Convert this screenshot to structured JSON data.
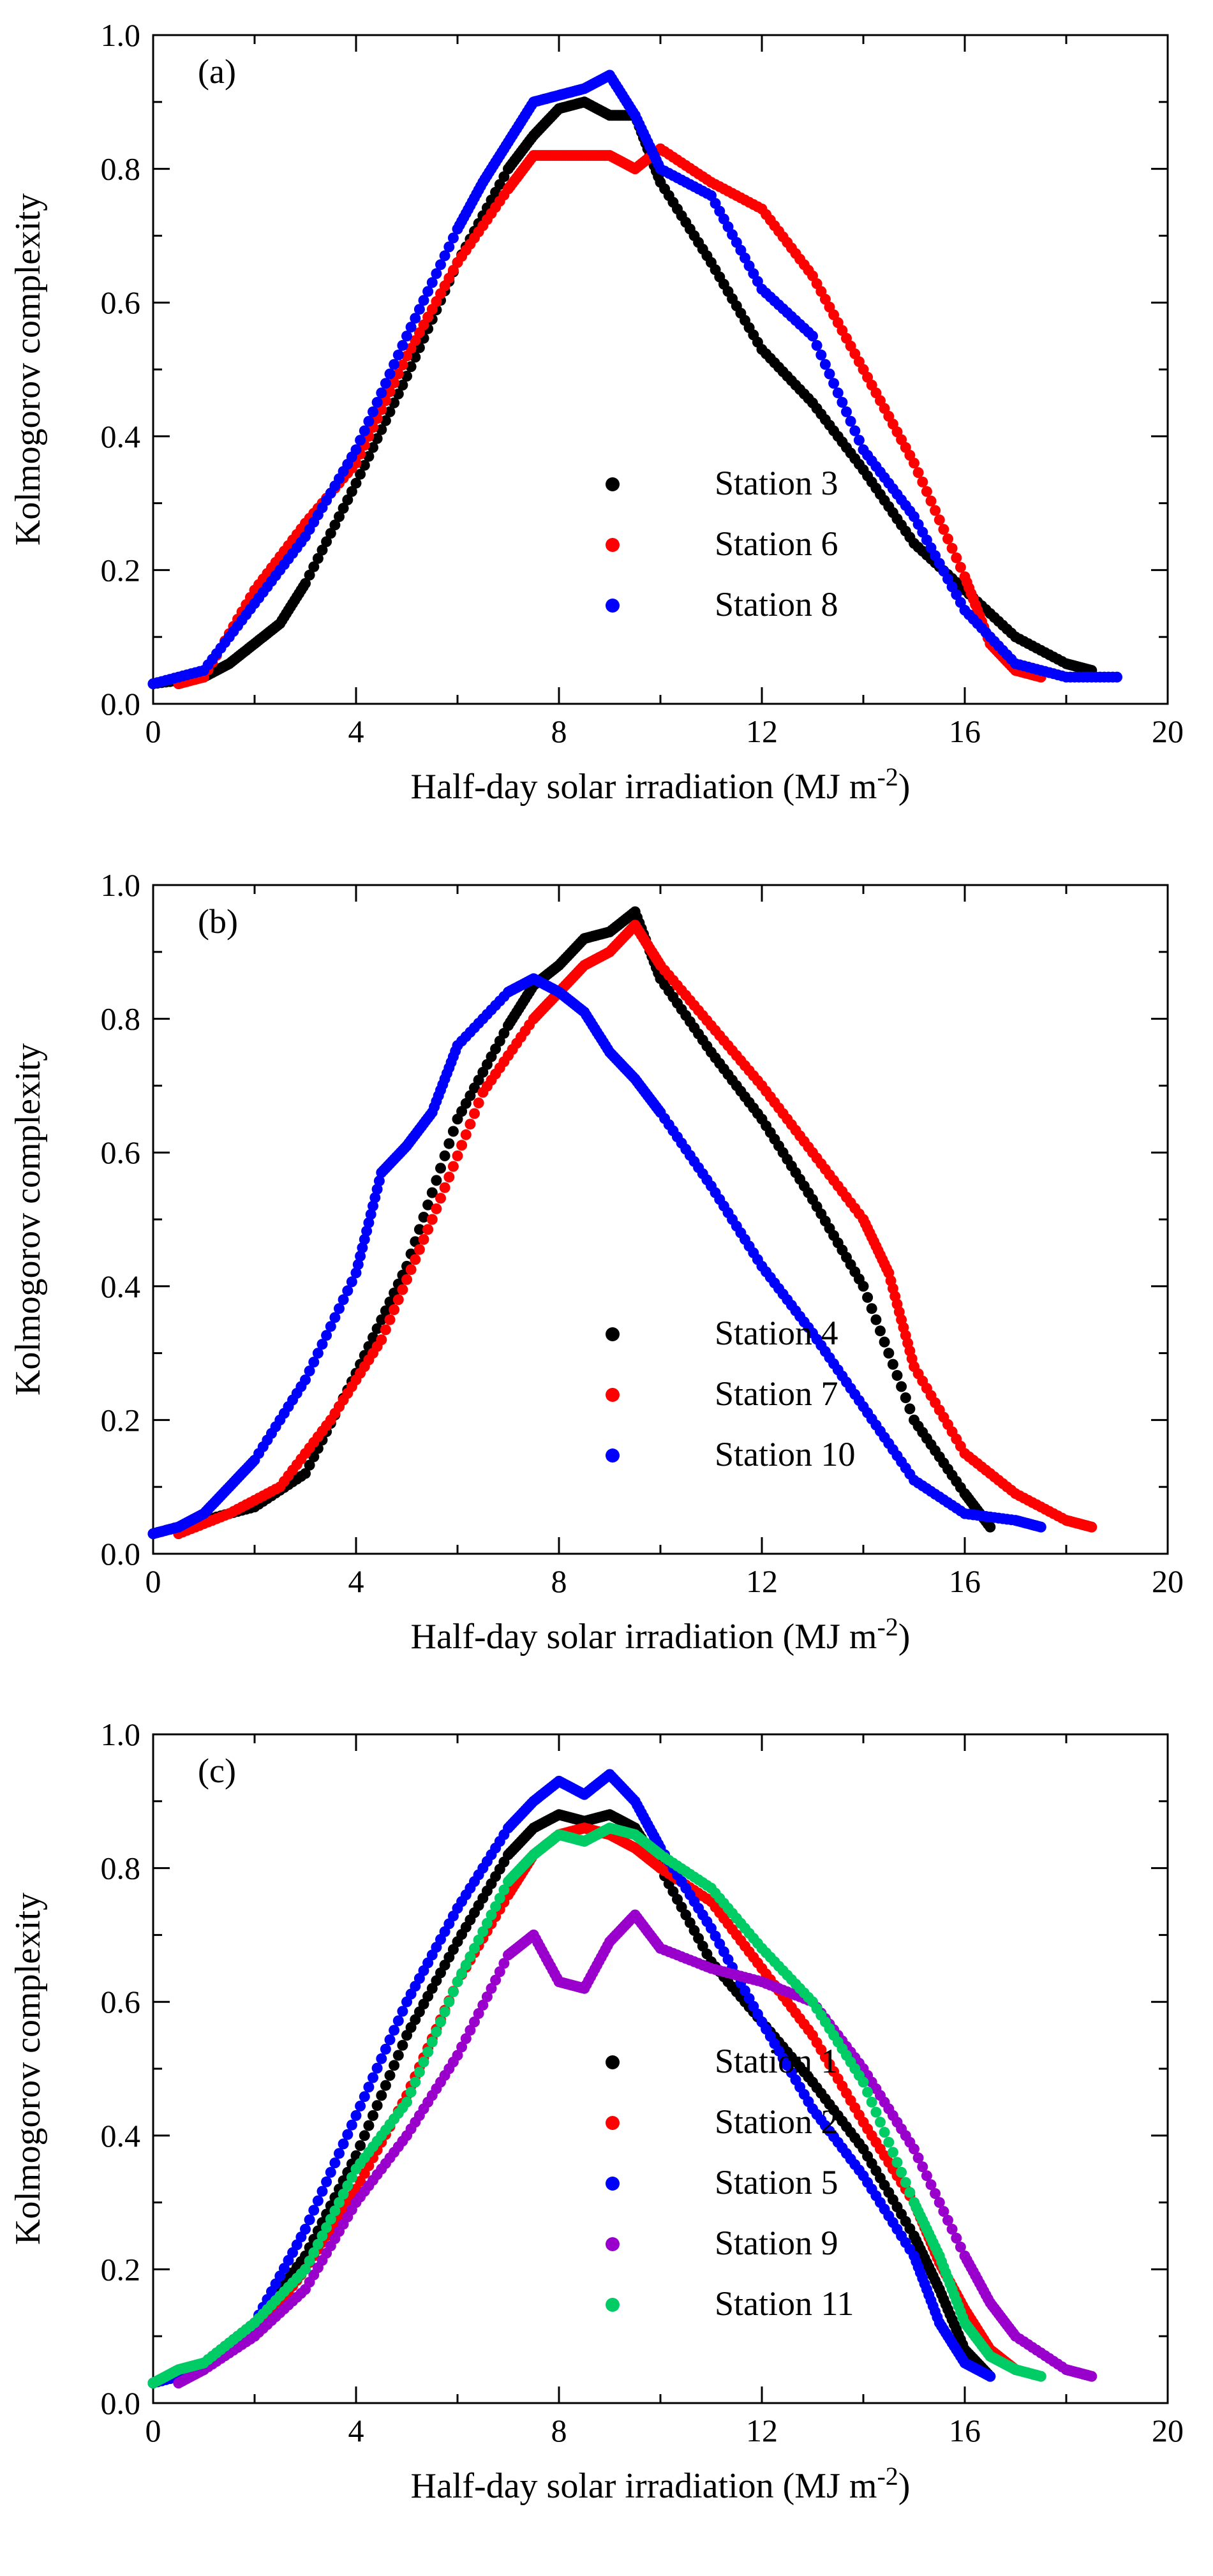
{
  "chart_data": [
    {
      "type": "scatter",
      "panel_label": "(a)",
      "xlabel": "Half-day solar irradiation (MJ m",
      "xlabel_sup": "-2",
      "xlabel_close": ")",
      "ylabel": "Kolmogorov complexity",
      "xlim": [
        0,
        20
      ],
      "ylim": [
        0.0,
        1.0
      ],
      "xticks": [
        "0",
        "4",
        "8",
        "12",
        "16",
        "20"
      ],
      "yticks": [
        "0.0",
        "0.2",
        "0.4",
        "0.6",
        "0.8",
        "1.0"
      ],
      "grid": false,
      "legend": "center",
      "series": [
        {
          "name": "Station 3",
          "color": "#000000",
          "x": [
            0.0,
            1.0,
            1.5,
            2.0,
            2.5,
            3.0,
            4.0,
            5.0,
            6.0,
            7.0,
            7.5,
            8.0,
            8.5,
            9.0,
            9.5,
            10.0,
            11.0,
            12.0,
            13.0,
            14.0,
            15.0,
            16.0,
            17.0,
            18.0,
            18.5
          ],
          "y": [
            0.03,
            0.04,
            0.06,
            0.09,
            0.12,
            0.18,
            0.33,
            0.49,
            0.66,
            0.8,
            0.85,
            0.89,
            0.9,
            0.88,
            0.88,
            0.78,
            0.66,
            0.53,
            0.45,
            0.35,
            0.24,
            0.17,
            0.1,
            0.06,
            0.05
          ]
        },
        {
          "name": "Station 6",
          "color": "#ff0000",
          "x": [
            0.5,
            1.0,
            2.0,
            3.0,
            4.0,
            5.0,
            6.0,
            7.0,
            7.5,
            8.0,
            8.5,
            9.0,
            9.5,
            10.0,
            11.0,
            12.0,
            13.0,
            14.0,
            15.0,
            16.0,
            16.5,
            17.0,
            17.5
          ],
          "y": [
            0.03,
            0.04,
            0.17,
            0.27,
            0.36,
            0.52,
            0.66,
            0.77,
            0.82,
            0.82,
            0.82,
            0.82,
            0.8,
            0.83,
            0.78,
            0.74,
            0.64,
            0.5,
            0.36,
            0.19,
            0.09,
            0.05,
            0.04
          ]
        },
        {
          "name": "Station 8",
          "color": "#0000ff",
          "x": [
            0.0,
            1.0,
            2.0,
            3.0,
            4.0,
            5.0,
            6.0,
            6.5,
            7.0,
            7.5,
            8.0,
            8.5,
            9.0,
            9.5,
            10.0,
            11.0,
            12.0,
            13.0,
            14.0,
            15.0,
            16.0,
            17.0,
            18.0,
            19.0
          ],
          "y": [
            0.03,
            0.05,
            0.15,
            0.25,
            0.38,
            0.55,
            0.71,
            0.78,
            0.84,
            0.9,
            0.91,
            0.92,
            0.94,
            0.88,
            0.8,
            0.76,
            0.62,
            0.55,
            0.38,
            0.28,
            0.14,
            0.06,
            0.04,
            0.04
          ]
        }
      ]
    },
    {
      "type": "scatter",
      "panel_label": "(b)",
      "xlabel": "Half-day solar irradiation (MJ m",
      "xlabel_sup": "-2",
      "xlabel_close": ")",
      "ylabel": "Kolmogorov complexity",
      "xlim": [
        0,
        20
      ],
      "ylim": [
        0.0,
        1.0
      ],
      "xticks": [
        "0",
        "4",
        "8",
        "12",
        "16",
        "20"
      ],
      "yticks": [
        "0.0",
        "0.2",
        "0.4",
        "0.6",
        "0.8",
        "1.0"
      ],
      "grid": false,
      "legend": "center",
      "series": [
        {
          "name": "Station 4",
          "color": "#000000",
          "x": [
            0.0,
            1.0,
            2.0,
            3.0,
            4.0,
            5.0,
            6.0,
            7.0,
            7.5,
            8.0,
            8.5,
            9.0,
            9.5,
            10.0,
            11.0,
            12.0,
            13.0,
            14.0,
            15.0,
            16.0,
            16.5
          ],
          "y": [
            0.03,
            0.05,
            0.07,
            0.12,
            0.27,
            0.43,
            0.65,
            0.79,
            0.85,
            0.88,
            0.92,
            0.93,
            0.96,
            0.86,
            0.75,
            0.65,
            0.53,
            0.4,
            0.2,
            0.09,
            0.04
          ]
        },
        {
          "name": "Station 7",
          "color": "#ff0000",
          "x": [
            0.5,
            1.5,
            2.5,
            3.5,
            4.5,
            5.5,
            6.5,
            7.5,
            8.0,
            8.5,
            9.0,
            9.5,
            10.0,
            11.0,
            12.0,
            13.0,
            14.0,
            14.5,
            15.0,
            16.0,
            17.0,
            18.0,
            18.5
          ],
          "y": [
            0.03,
            0.06,
            0.1,
            0.2,
            0.32,
            0.5,
            0.69,
            0.8,
            0.84,
            0.88,
            0.9,
            0.94,
            0.88,
            0.79,
            0.7,
            0.6,
            0.5,
            0.42,
            0.28,
            0.15,
            0.09,
            0.05,
            0.04
          ]
        },
        {
          "name": "Station 10",
          "color": "#0000ff",
          "x": [
            0.0,
            0.5,
            1.0,
            1.5,
            2.0,
            3.0,
            4.0,
            4.5,
            5.0,
            5.5,
            6.0,
            7.0,
            7.5,
            8.0,
            8.5,
            9.0,
            9.5,
            10.0,
            11.0,
            12.0,
            13.0,
            14.0,
            15.0,
            16.0,
            17.0,
            17.5
          ],
          "y": [
            0.03,
            0.04,
            0.06,
            0.1,
            0.14,
            0.26,
            0.42,
            0.57,
            0.61,
            0.66,
            0.76,
            0.84,
            0.86,
            0.84,
            0.81,
            0.75,
            0.71,
            0.66,
            0.55,
            0.43,
            0.33,
            0.22,
            0.11,
            0.06,
            0.05,
            0.04
          ]
        }
      ]
    },
    {
      "type": "scatter",
      "panel_label": "(c)",
      "xlabel": "Half-day solar irradiation (MJ m",
      "xlabel_sup": "-2",
      "xlabel_close": ")",
      "ylabel": "Kolmogorov complexity",
      "xlim": [
        0,
        20
      ],
      "ylim": [
        0.0,
        1.0
      ],
      "xticks": [
        "0",
        "4",
        "8",
        "12",
        "16",
        "20"
      ],
      "yticks": [
        "0.0",
        "0.2",
        "0.4",
        "0.6",
        "0.8",
        "1.0"
      ],
      "grid": false,
      "legend": "center",
      "series": [
        {
          "name": "Station 1",
          "color": "#000000",
          "x": [
            0.0,
            1.0,
            2.0,
            3.0,
            4.0,
            5.0,
            6.0,
            7.0,
            7.5,
            8.0,
            8.5,
            9.0,
            9.5,
            10.0,
            11.0,
            12.0,
            13.0,
            14.0,
            15.0,
            15.5,
            16.0,
            16.5
          ],
          "y": [
            0.03,
            0.06,
            0.12,
            0.22,
            0.37,
            0.55,
            0.69,
            0.82,
            0.86,
            0.88,
            0.87,
            0.88,
            0.86,
            0.8,
            0.66,
            0.57,
            0.48,
            0.38,
            0.25,
            0.17,
            0.08,
            0.04
          ]
        },
        {
          "name": "Station 2",
          "color": "#ff0000",
          "x": [
            0.0,
            1.0,
            2.0,
            3.0,
            4.0,
            5.0,
            6.0,
            7.0,
            7.5,
            8.0,
            8.5,
            9.0,
            9.5,
            10.0,
            11.0,
            12.0,
            13.0,
            14.0,
            15.0,
            15.5,
            16.0,
            16.5,
            17.0
          ],
          "y": [
            0.03,
            0.05,
            0.1,
            0.2,
            0.32,
            0.46,
            0.63,
            0.76,
            0.82,
            0.85,
            0.86,
            0.85,
            0.83,
            0.8,
            0.75,
            0.65,
            0.55,
            0.42,
            0.3,
            0.21,
            0.14,
            0.08,
            0.05
          ]
        },
        {
          "name": "Station 5",
          "color": "#0000ff",
          "x": [
            0.0,
            1.0,
            2.0,
            3.0,
            4.0,
            5.0,
            6.0,
            7.0,
            7.5,
            8.0,
            8.5,
            9.0,
            9.5,
            10.0,
            11.0,
            12.0,
            13.0,
            14.0,
            15.0,
            15.5,
            16.0,
            16.5
          ],
          "y": [
            0.03,
            0.05,
            0.12,
            0.26,
            0.43,
            0.6,
            0.74,
            0.86,
            0.9,
            0.93,
            0.91,
            0.94,
            0.9,
            0.83,
            0.71,
            0.57,
            0.44,
            0.34,
            0.22,
            0.12,
            0.06,
            0.04
          ]
        },
        {
          "name": "Station 9",
          "color": "#9900cc",
          "x": [
            0.5,
            1.0,
            2.0,
            3.0,
            4.0,
            5.0,
            6.0,
            7.0,
            7.5,
            8.0,
            8.5,
            9.0,
            9.5,
            10.0,
            11.0,
            12.0,
            13.0,
            14.0,
            15.0,
            16.0,
            16.5,
            17.0,
            18.0,
            18.5
          ],
          "y": [
            0.03,
            0.05,
            0.1,
            0.17,
            0.3,
            0.4,
            0.52,
            0.67,
            0.7,
            0.63,
            0.62,
            0.69,
            0.73,
            0.68,
            0.65,
            0.63,
            0.6,
            0.5,
            0.38,
            0.22,
            0.15,
            0.1,
            0.05,
            0.04
          ]
        },
        {
          "name": "Station 11",
          "color": "#00cc66",
          "x": [
            0.0,
            0.5,
            1.0,
            2.0,
            3.0,
            4.0,
            5.0,
            6.0,
            7.0,
            7.5,
            8.0,
            8.5,
            9.0,
            9.5,
            10.0,
            11.0,
            12.0,
            13.0,
            14.0,
            15.0,
            15.5,
            16.0,
            16.5,
            17.0,
            17.5
          ],
          "y": [
            0.03,
            0.05,
            0.06,
            0.12,
            0.2,
            0.35,
            0.45,
            0.63,
            0.78,
            0.82,
            0.85,
            0.84,
            0.86,
            0.85,
            0.82,
            0.77,
            0.68,
            0.6,
            0.48,
            0.3,
            0.22,
            0.12,
            0.07,
            0.05,
            0.04
          ]
        }
      ]
    }
  ]
}
